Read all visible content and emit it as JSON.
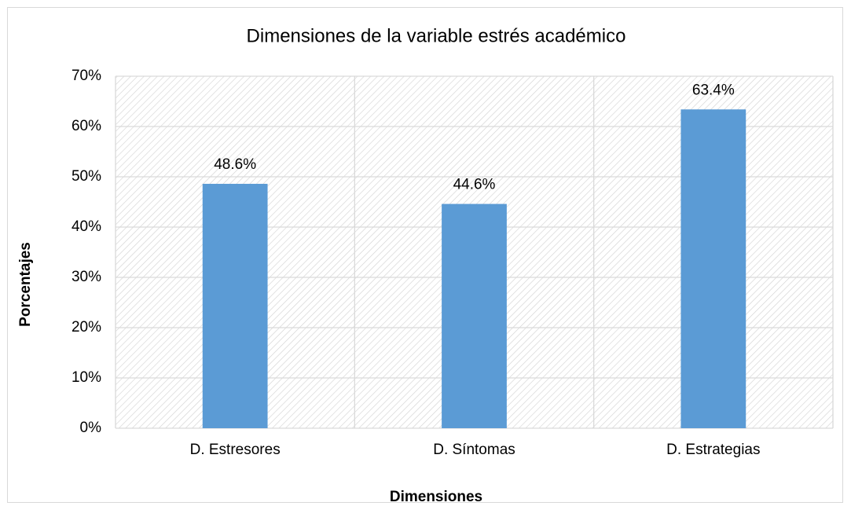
{
  "chart_data": {
    "type": "bar",
    "title": "Dimensiones de la variable estrés académico",
    "x_label": "Dimensiones",
    "y_label": "Porcentajes",
    "categories": [
      "D. Estresores",
      "D. Síntomas",
      "D. Estrategias"
    ],
    "values": [
      48.6,
      44.6,
      63.4
    ],
    "value_labels": [
      "48.6%",
      "44.6%",
      "63.4%"
    ],
    "color": "#5b9bd5",
    "ylim": [
      0,
      70
    ],
    "yticks": [
      {
        "value": 0,
        "label": "0%"
      },
      {
        "value": 10,
        "label": "10%"
      },
      {
        "value": 20,
        "label": "20%"
      },
      {
        "value": 30,
        "label": "30%"
      },
      {
        "value": 40,
        "label": "40%"
      },
      {
        "value": 50,
        "label": "50%"
      },
      {
        "value": 60,
        "label": "60%"
      },
      {
        "value": 70,
        "label": "70%"
      }
    ],
    "grid": true
  }
}
